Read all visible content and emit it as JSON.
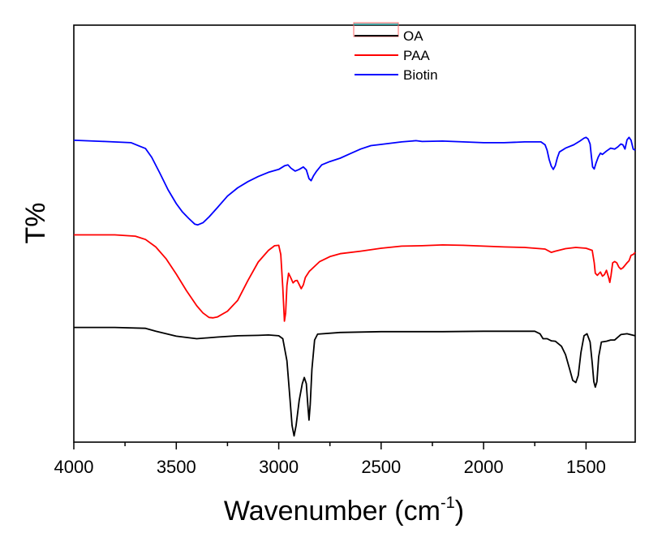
{
  "chart_data": {
    "type": "line",
    "title": "",
    "xlabel": "Wavenumber (cm",
    "xlabel_sup": "-1",
    "xlabel_close": ")",
    "ylabel": "T%",
    "xlim": [
      4000,
      1260
    ],
    "ylim": [
      0,
      100
    ],
    "x_reversed": true,
    "grid": false,
    "legend_position": "top-center",
    "xticks": [
      4000,
      3500,
      3000,
      2500,
      2000,
      1500
    ],
    "xtick_labels": [
      "4000",
      "3500",
      "3000",
      "2500",
      "2000",
      "1500"
    ],
    "series": [
      {
        "name": "OA",
        "color": "#000000",
        "points": [
          [
            4000,
            27.5
          ],
          [
            3800,
            27.5
          ],
          [
            3650,
            27.3
          ],
          [
            3600,
            26.6
          ],
          [
            3500,
            25.4
          ],
          [
            3400,
            24.8
          ],
          [
            3300,
            25.2
          ],
          [
            3200,
            25.5
          ],
          [
            3100,
            25.6
          ],
          [
            3050,
            25.7
          ],
          [
            3000,
            25.5
          ],
          [
            2980,
            24.8
          ],
          [
            2960,
            19.5
          ],
          [
            2945,
            10.5
          ],
          [
            2935,
            4
          ],
          [
            2925,
            1.5
          ],
          [
            2915,
            4
          ],
          [
            2900,
            10
          ],
          [
            2885,
            14
          ],
          [
            2875,
            15.5
          ],
          [
            2865,
            14
          ],
          [
            2858,
            9
          ],
          [
            2852,
            5.3
          ],
          [
            2846,
            9
          ],
          [
            2838,
            17.5
          ],
          [
            2825,
            24.5
          ],
          [
            2810,
            25.9
          ],
          [
            2700,
            26.3
          ],
          [
            2500,
            26.5
          ],
          [
            2200,
            26.5
          ],
          [
            2000,
            26.6
          ],
          [
            1800,
            26.6
          ],
          [
            1750,
            26.6
          ],
          [
            1725,
            26
          ],
          [
            1710,
            24.8
          ],
          [
            1690,
            24.8
          ],
          [
            1670,
            24.3
          ],
          [
            1650,
            24.2
          ],
          [
            1620,
            23
          ],
          [
            1600,
            21
          ],
          [
            1580,
            17.5
          ],
          [
            1565,
            14.8
          ],
          [
            1550,
            14.3
          ],
          [
            1538,
            16
          ],
          [
            1525,
            21.5
          ],
          [
            1510,
            25.5
          ],
          [
            1495,
            26
          ],
          [
            1480,
            24
          ],
          [
            1470,
            19
          ],
          [
            1462,
            14.5
          ],
          [
            1455,
            13.2
          ],
          [
            1447,
            14.5
          ],
          [
            1438,
            20.5
          ],
          [
            1425,
            24
          ],
          [
            1400,
            24.2
          ],
          [
            1380,
            24.5
          ],
          [
            1360,
            24.5
          ],
          [
            1330,
            25.8
          ],
          [
            1300,
            26
          ],
          [
            1260,
            25.5
          ]
        ]
      },
      {
        "name": "PAA",
        "color": "#ff0000",
        "points": [
          [
            4000,
            49.7
          ],
          [
            3800,
            49.7
          ],
          [
            3700,
            49.4
          ],
          [
            3650,
            48.6
          ],
          [
            3600,
            46.8
          ],
          [
            3550,
            44
          ],
          [
            3500,
            40.3
          ],
          [
            3450,
            36.3
          ],
          [
            3400,
            32.7
          ],
          [
            3370,
            31
          ],
          [
            3340,
            29.9
          ],
          [
            3320,
            29.8
          ],
          [
            3300,
            30
          ],
          [
            3250,
            31.4
          ],
          [
            3200,
            34
          ],
          [
            3150,
            38.8
          ],
          [
            3100,
            43.2
          ],
          [
            3050,
            46
          ],
          [
            3020,
            47.1
          ],
          [
            3000,
            47.2
          ],
          [
            2990,
            45
          ],
          [
            2980,
            37
          ],
          [
            2972,
            29
          ],
          [
            2966,
            31
          ],
          [
            2960,
            37.6
          ],
          [
            2952,
            40.5
          ],
          [
            2940,
            39.3
          ],
          [
            2930,
            38.2
          ],
          [
            2920,
            38.7
          ],
          [
            2910,
            38.8
          ],
          [
            2900,
            37.8
          ],
          [
            2890,
            36.8
          ],
          [
            2880,
            37.7
          ],
          [
            2870,
            39.5
          ],
          [
            2850,
            41
          ],
          [
            2800,
            43.3
          ],
          [
            2750,
            44.5
          ],
          [
            2700,
            45.2
          ],
          [
            2600,
            45.8
          ],
          [
            2500,
            46.5
          ],
          [
            2400,
            47
          ],
          [
            2300,
            47.1
          ],
          [
            2200,
            47.3
          ],
          [
            2100,
            47.2
          ],
          [
            2000,
            47
          ],
          [
            1900,
            46.8
          ],
          [
            1800,
            46.7
          ],
          [
            1700,
            46.3
          ],
          [
            1670,
            45.5
          ],
          [
            1650,
            45.8
          ],
          [
            1600,
            46.4
          ],
          [
            1550,
            46.7
          ],
          [
            1500,
            46.5
          ],
          [
            1470,
            46
          ],
          [
            1460,
            43
          ],
          [
            1455,
            40.5
          ],
          [
            1445,
            40
          ],
          [
            1430,
            40.8
          ],
          [
            1420,
            39.8
          ],
          [
            1410,
            40.2
          ],
          [
            1400,
            41.2
          ],
          [
            1390,
            39.5
          ],
          [
            1384,
            38.3
          ],
          [
            1378,
            40
          ],
          [
            1370,
            43
          ],
          [
            1360,
            43.3
          ],
          [
            1350,
            43
          ],
          [
            1340,
            42
          ],
          [
            1330,
            41.5
          ],
          [
            1320,
            41.8
          ],
          [
            1310,
            42.4
          ],
          [
            1300,
            43
          ],
          [
            1290,
            43.5
          ],
          [
            1280,
            44.8
          ],
          [
            1270,
            45
          ],
          [
            1260,
            45.5
          ]
        ]
      },
      {
        "name": "Biotin",
        "color": "#0000ff",
        "points": [
          [
            4000,
            72.4
          ],
          [
            3850,
            72.1
          ],
          [
            3720,
            71.8
          ],
          [
            3680,
            71
          ],
          [
            3650,
            70.4
          ],
          [
            3620,
            68.3
          ],
          [
            3580,
            64.5
          ],
          [
            3540,
            60.5
          ],
          [
            3500,
            57.2
          ],
          [
            3470,
            55.2
          ],
          [
            3440,
            53.7
          ],
          [
            3410,
            52.3
          ],
          [
            3395,
            52.1
          ],
          [
            3370,
            52.6
          ],
          [
            3340,
            54
          ],
          [
            3300,
            56.2
          ],
          [
            3250,
            59
          ],
          [
            3200,
            61
          ],
          [
            3150,
            62.5
          ],
          [
            3100,
            63.7
          ],
          [
            3050,
            64.7
          ],
          [
            3000,
            65.4
          ],
          [
            2970,
            66.3
          ],
          [
            2955,
            66.5
          ],
          [
            2940,
            65.7
          ],
          [
            2920,
            65
          ],
          [
            2900,
            65.4
          ],
          [
            2880,
            66
          ],
          [
            2865,
            65.3
          ],
          [
            2852,
            63.2
          ],
          [
            2842,
            62.7
          ],
          [
            2830,
            63.9
          ],
          [
            2815,
            65
          ],
          [
            2790,
            66.5
          ],
          [
            2750,
            67.3
          ],
          [
            2700,
            68.1
          ],
          [
            2650,
            69.2
          ],
          [
            2600,
            70.3
          ],
          [
            2550,
            71.1
          ],
          [
            2500,
            71.4
          ],
          [
            2400,
            72
          ],
          [
            2330,
            72.3
          ],
          [
            2300,
            72.1
          ],
          [
            2200,
            72.2
          ],
          [
            2100,
            72
          ],
          [
            2000,
            71.8
          ],
          [
            1900,
            71.8
          ],
          [
            1800,
            72
          ],
          [
            1750,
            72
          ],
          [
            1720,
            72
          ],
          [
            1700,
            71.3
          ],
          [
            1690,
            70
          ],
          [
            1680,
            67.8
          ],
          [
            1670,
            66.2
          ],
          [
            1660,
            65.4
          ],
          [
            1650,
            66.3
          ],
          [
            1640,
            68.2
          ],
          [
            1630,
            69.6
          ],
          [
            1600,
            70.5
          ],
          [
            1560,
            71.3
          ],
          [
            1530,
            72.2
          ],
          [
            1510,
            72.9
          ],
          [
            1500,
            73.1
          ],
          [
            1490,
            72.7
          ],
          [
            1480,
            71.5
          ],
          [
            1474,
            68.5
          ],
          [
            1468,
            66
          ],
          [
            1460,
            65.5
          ],
          [
            1452,
            66.8
          ],
          [
            1440,
            68.4
          ],
          [
            1430,
            69.3
          ],
          [
            1420,
            69
          ],
          [
            1400,
            69.8
          ],
          [
            1380,
            70.5
          ],
          [
            1360,
            70.3
          ],
          [
            1345,
            70.8
          ],
          [
            1330,
            71.5
          ],
          [
            1320,
            71.3
          ],
          [
            1310,
            70.3
          ],
          [
            1300,
            72.5
          ],
          [
            1290,
            73.1
          ],
          [
            1280,
            72.4
          ],
          [
            1270,
            70.3
          ],
          [
            1260,
            70
          ]
        ]
      }
    ]
  }
}
